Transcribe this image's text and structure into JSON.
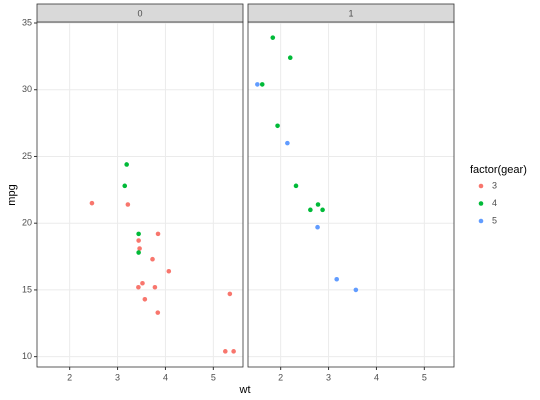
{
  "chart_data": {
    "type": "scatter",
    "x_label": "wt",
    "y_label": "mpg",
    "legend_title": "factor(gear)",
    "facets": [
      "0",
      "1"
    ],
    "xlim": [
      1.3175,
      5.6196
    ],
    "xticks": [
      2,
      3,
      4,
      5
    ],
    "ylim": [
      9.225,
      35.075
    ],
    "yticks": [
      10,
      15,
      20,
      25,
      30,
      35
    ],
    "grid": true,
    "series": [
      {
        "name": "3",
        "color": "#F8766D",
        "am": [
          0,
          0,
          0,
          0,
          0,
          0,
          0,
          0,
          0,
          0,
          0,
          0,
          0,
          0,
          0
        ],
        "x": [
          3.215,
          3.44,
          3.46,
          3.57,
          4.07,
          3.73,
          3.78,
          5.25,
          5.424,
          5.345,
          2.465,
          3.52,
          3.435,
          3.84,
          3.845
        ],
        "y": [
          21.4,
          18.7,
          18.1,
          14.3,
          16.4,
          17.3,
          15.2,
          10.4,
          10.4,
          14.7,
          21.5,
          15.5,
          15.2,
          13.3,
          19.2
        ]
      },
      {
        "name": "4",
        "color": "#00BA38",
        "am": [
          0,
          0,
          0,
          0,
          1,
          1,
          1,
          1,
          1,
          1,
          1,
          1
        ],
        "x": [
          3.19,
          3.15,
          3.44,
          3.44,
          2.62,
          2.875,
          2.32,
          2.2,
          1.615,
          1.835,
          1.935,
          2.78
        ],
        "y": [
          24.4,
          22.8,
          19.2,
          17.8,
          21.0,
          21.0,
          22.8,
          32.4,
          30.4,
          33.9,
          27.3,
          21.4
        ]
      },
      {
        "name": "5",
        "color": "#619CFF",
        "am": [
          1,
          1,
          1,
          1,
          1
        ],
        "x": [
          2.14,
          1.513,
          3.17,
          2.77,
          3.57
        ],
        "y": [
          26.0,
          30.4,
          15.8,
          19.7,
          15.0
        ]
      }
    ]
  }
}
